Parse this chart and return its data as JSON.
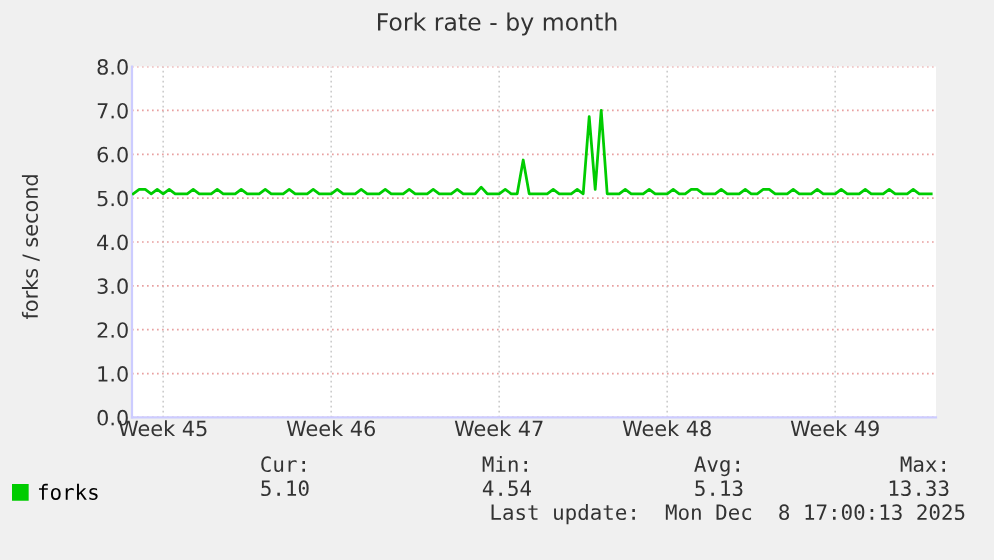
{
  "chart_data": {
    "type": "line",
    "title": "Fork rate - by month",
    "ylabel": "forks / second",
    "categories": [
      null,
      null,
      null,
      null,
      null,
      "Week 45",
      null,
      null,
      null,
      null,
      null,
      null,
      null,
      null,
      null,
      null,
      null,
      null,
      null,
      null,
      null,
      null,
      null,
      null,
      null,
      null,
      null,
      null,
      null,
      null,
      null,
      null,
      null,
      "Week 46",
      null,
      null,
      null,
      null,
      null,
      null,
      null,
      null,
      null,
      null,
      null,
      null,
      null,
      null,
      null,
      null,
      null,
      null,
      null,
      null,
      null,
      null,
      null,
      null,
      null,
      null,
      null,
      "Week 47",
      null,
      null,
      null,
      null,
      null,
      null,
      null,
      null,
      null,
      null,
      null,
      null,
      null,
      null,
      null,
      null,
      null,
      null,
      null,
      null,
      null,
      null,
      null,
      null,
      null,
      null,
      null,
      "Week 48",
      null,
      null,
      null,
      null,
      null,
      null,
      null,
      null,
      null,
      null,
      null,
      null,
      null,
      null,
      null,
      null,
      null,
      null,
      null,
      null,
      null,
      null,
      null,
      null,
      null,
      null,
      null,
      "Week 49",
      null,
      null,
      null,
      null,
      null,
      null,
      null,
      null,
      null,
      null,
      null,
      null,
      null,
      null,
      null,
      null
    ],
    "series": [
      {
        "name": "forks",
        "color": "#00cc00",
        "values": [
          5.1,
          5.2,
          5.2,
          5.1,
          5.2,
          5.1,
          5.2,
          5.1,
          5.1,
          5.1,
          5.2,
          5.1,
          5.1,
          5.1,
          5.2,
          5.1,
          5.1,
          5.1,
          5.2,
          5.1,
          5.1,
          5.1,
          5.2,
          5.1,
          5.1,
          5.1,
          5.2,
          5.1,
          5.1,
          5.1,
          5.2,
          5.1,
          5.1,
          5.1,
          5.2,
          5.1,
          5.1,
          5.1,
          5.2,
          5.1,
          5.1,
          5.1,
          5.2,
          5.1,
          5.1,
          5.1,
          5.2,
          5.1,
          5.1,
          5.1,
          5.2,
          5.1,
          5.1,
          5.1,
          5.2,
          5.1,
          5.1,
          5.1,
          5.25,
          5.1,
          5.1,
          5.1,
          5.2,
          5.1,
          5.1,
          5.87,
          5.1,
          5.1,
          5.1,
          5.1,
          5.2,
          5.1,
          5.1,
          5.1,
          5.2,
          5.1,
          6.86,
          5.2,
          7.0,
          5.1,
          5.1,
          5.1,
          5.2,
          5.1,
          5.1,
          5.1,
          5.2,
          5.1,
          5.1,
          5.1,
          5.2,
          5.1,
          5.1,
          5.2,
          5.2,
          5.1,
          5.1,
          5.1,
          5.2,
          5.1,
          5.1,
          5.1,
          5.2,
          5.1,
          5.1,
          5.2,
          5.2,
          5.1,
          5.1,
          5.1,
          5.2,
          5.1,
          5.1,
          5.1,
          5.2,
          5.1,
          5.1,
          5.1,
          5.2,
          5.1,
          5.1,
          5.1,
          5.2,
          5.1,
          5.1,
          5.1,
          5.2,
          5.1,
          5.1,
          5.1,
          5.2,
          5.1,
          5.1,
          5.1
        ]
      }
    ],
    "ylim": [
      0,
      8
    ],
    "yticks": [
      {
        "value": 0,
        "label": "0.0"
      },
      {
        "value": 1,
        "label": "1.0"
      },
      {
        "value": 2,
        "label": "2.0"
      },
      {
        "value": 3,
        "label": "3.0"
      },
      {
        "value": 4,
        "label": "4.0"
      },
      {
        "value": 5,
        "label": "5.0"
      },
      {
        "value": 6,
        "label": "6.0"
      },
      {
        "value": 7,
        "label": "7.0"
      },
      {
        "value": 8,
        "label": "8.0"
      }
    ],
    "grid": true,
    "legend": "bottom left",
    "marker": "none",
    "line_style": "solid",
    "annotations": [
      "Cur:",
      "5.10",
      "Min:",
      "4.54",
      "Avg:",
      "5.13",
      "Max:",
      "13.33",
      "Last update:  Mon Dec  8 17:00:13 2025"
    ]
  }
}
